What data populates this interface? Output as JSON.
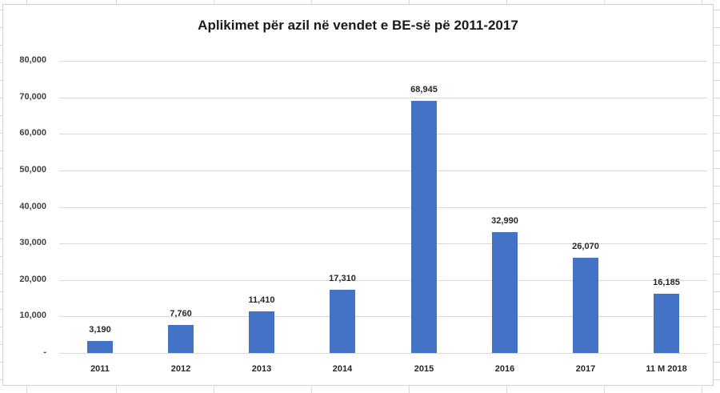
{
  "chart_data": {
    "type": "bar",
    "title": "Aplikimet për azil në vendet e BE-së pë 2011-2017",
    "xlabel": "",
    "ylabel": "",
    "categories": [
      "2011",
      "2012",
      "2013",
      "2014",
      "2015",
      "2016",
      "2017",
      "11 M 2018"
    ],
    "values": [
      3190,
      7760,
      11410,
      17310,
      68945,
      32990,
      26070,
      16185
    ],
    "value_labels": [
      "3,190",
      "7,760",
      "11,410",
      "17,310",
      "68,945",
      "32,990",
      "26,070",
      "16,185"
    ],
    "ylim": [
      0,
      80000
    ],
    "yticks": [
      0,
      10000,
      20000,
      30000,
      40000,
      50000,
      60000,
      70000,
      80000
    ],
    "ytick_labels": [
      "-",
      "10,000",
      "20,000",
      "30,000",
      "40,000",
      "50,000",
      "60,000",
      "70,000",
      "80,000"
    ],
    "grid": true,
    "legend": null,
    "bar_color": "#4472c4"
  }
}
